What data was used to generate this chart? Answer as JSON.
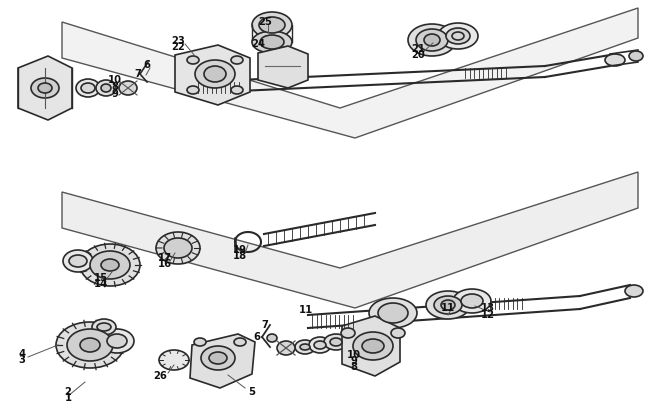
{
  "background_color": "#ffffff",
  "line_color": "#2a2a2a",
  "line_width": 1.2,
  "thin_line": 0.7,
  "label_fontsize": 7.5
}
